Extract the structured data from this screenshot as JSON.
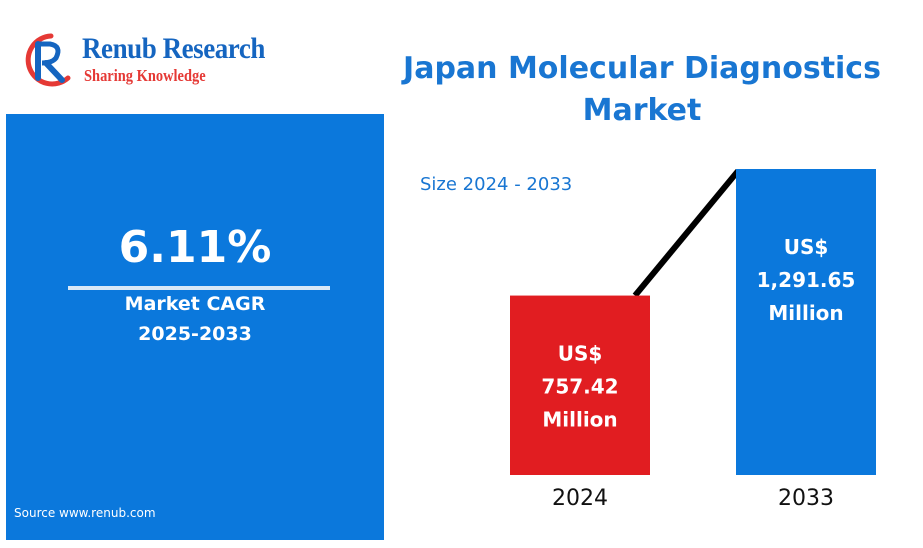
{
  "brand": {
    "name": "Renub Research",
    "tagline": "Sharing Knowledge"
  },
  "cagr": {
    "value": "6.11%",
    "label": "Market CAGR",
    "period": "2025-2033",
    "source": "Source  www.renub.com"
  },
  "colors": {
    "brand_blue": "#1565c0",
    "panel_blue": "#0b78dc",
    "bar_2024": "#e11d21",
    "bar_2033": "#0b78dc",
    "trend_line": "#000000"
  },
  "chart_data": {
    "type": "bar",
    "title_lines": [
      "Japan Molecular Diagnostics",
      "Market"
    ],
    "subtitle": "Size 2024 - 2033",
    "categories": [
      "2024",
      "2033"
    ],
    "values": [
      757.42,
      1291.65
    ],
    "data_labels": [
      [
        "US$",
        "757.42",
        "Million"
      ],
      [
        "US$",
        "1,291.65",
        "Million"
      ]
    ],
    "unit": "US$ Million",
    "trend_line": true,
    "grid": false,
    "legend": "none"
  }
}
